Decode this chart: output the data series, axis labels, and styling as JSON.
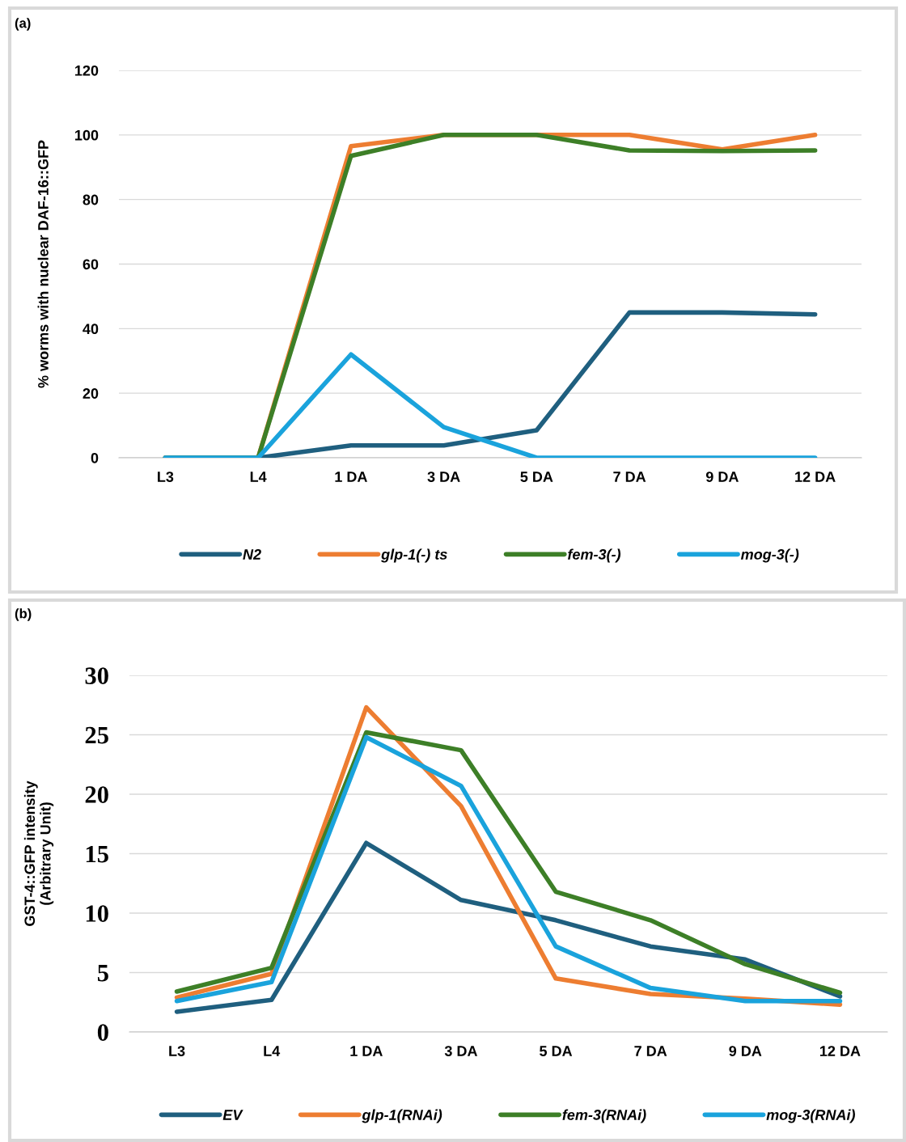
{
  "chart_data": [
    {
      "type": "line",
      "ylabel": "% worms with nuclear DAF-16::GFP",
      "annotations": [
        "(a)"
      ],
      "categories": [
        "L3",
        "L4",
        "1 DA",
        "3 DA",
        "5 DA",
        "7 DA",
        "9 DA",
        "12 DA"
      ],
      "series": [
        {
          "name": "N2",
          "color": "#1f5f7f",
          "values": [
            0,
            0,
            3.8,
            3.8,
            8.5,
            45,
            45,
            44.4
          ]
        },
        {
          "name": "glp-1(-) ts",
          "color": "#ed7d31",
          "values": [
            0,
            0,
            96.5,
            100,
            100,
            100,
            95.5,
            100
          ]
        },
        {
          "name": "fem-3(-)",
          "color": "#3d7f27",
          "values": [
            0,
            0,
            93.5,
            100,
            100,
            95.2,
            95,
            95.2
          ]
        },
        {
          "name": "mog-3(-)",
          "color": "#1aa3dc",
          "values": [
            0,
            0,
            32,
            9.5,
            0,
            0,
            0,
            0
          ]
        }
      ],
      "ylim": [
        0,
        120
      ],
      "yticks": [
        0,
        20,
        40,
        60,
        80,
        100,
        120
      ],
      "grid": "y",
      "legend": "bottom",
      "marker": "none",
      "line_style": "solid"
    },
    {
      "type": "line",
      "ylabel": "GST-4::GFP intensity\n(Arbitrary Unit)",
      "annotations": [
        "(b)"
      ],
      "categories": [
        "L3",
        "L4",
        "1 DA",
        "3 DA",
        "5 DA",
        "7 DA",
        "9 DA",
        "12 DA"
      ],
      "series": [
        {
          "name": "EV",
          "color": "#1f5f7f",
          "values": [
            1.7,
            2.7,
            15.9,
            11.1,
            9.4,
            7.2,
            6.1,
            3.0
          ]
        },
        {
          "name": "glp-1(RNAi)",
          "color": "#ed7d31",
          "values": [
            2.9,
            4.9,
            27.3,
            19,
            4.5,
            3.2,
            2.8,
            2.3
          ]
        },
        {
          "name": "fem-3(RNAi)",
          "color": "#3d7f27",
          "values": [
            3.4,
            5.4,
            25.2,
            23.7,
            11.8,
            9.4,
            5.7,
            3.3
          ]
        },
        {
          "name": "mog-3(RNAi)",
          "color": "#1aa3dc",
          "values": [
            2.6,
            4.2,
            24.8,
            20.7,
            7.2,
            3.7,
            2.6,
            2.6
          ]
        }
      ],
      "ylim": [
        0,
        30
      ],
      "yticks": [
        0,
        5,
        10,
        15,
        20,
        25,
        30
      ],
      "grid": "y",
      "legend": "bottom",
      "marker": "none",
      "line_style": "solid"
    }
  ]
}
